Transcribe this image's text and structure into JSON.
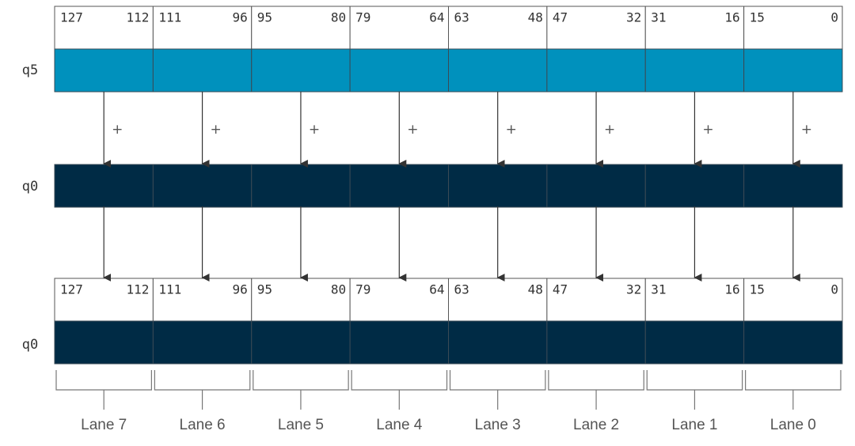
{
  "bit_headers": [
    [
      "127",
      "112"
    ],
    [
      "111",
      "96"
    ],
    [
      "95",
      "80"
    ],
    [
      "79",
      "64"
    ],
    [
      "63",
      "48"
    ],
    [
      "47",
      "32"
    ],
    [
      "31",
      "16"
    ],
    [
      "15",
      "0"
    ]
  ],
  "registers": {
    "source": "q5",
    "accumulator": "q0",
    "result": "q0"
  },
  "operator": "+",
  "lanes": [
    "Lane 7",
    "Lane 6",
    "Lane 5",
    "Lane 4",
    "Lane 3",
    "Lane 2",
    "Lane 1",
    "Lane 0"
  ]
}
